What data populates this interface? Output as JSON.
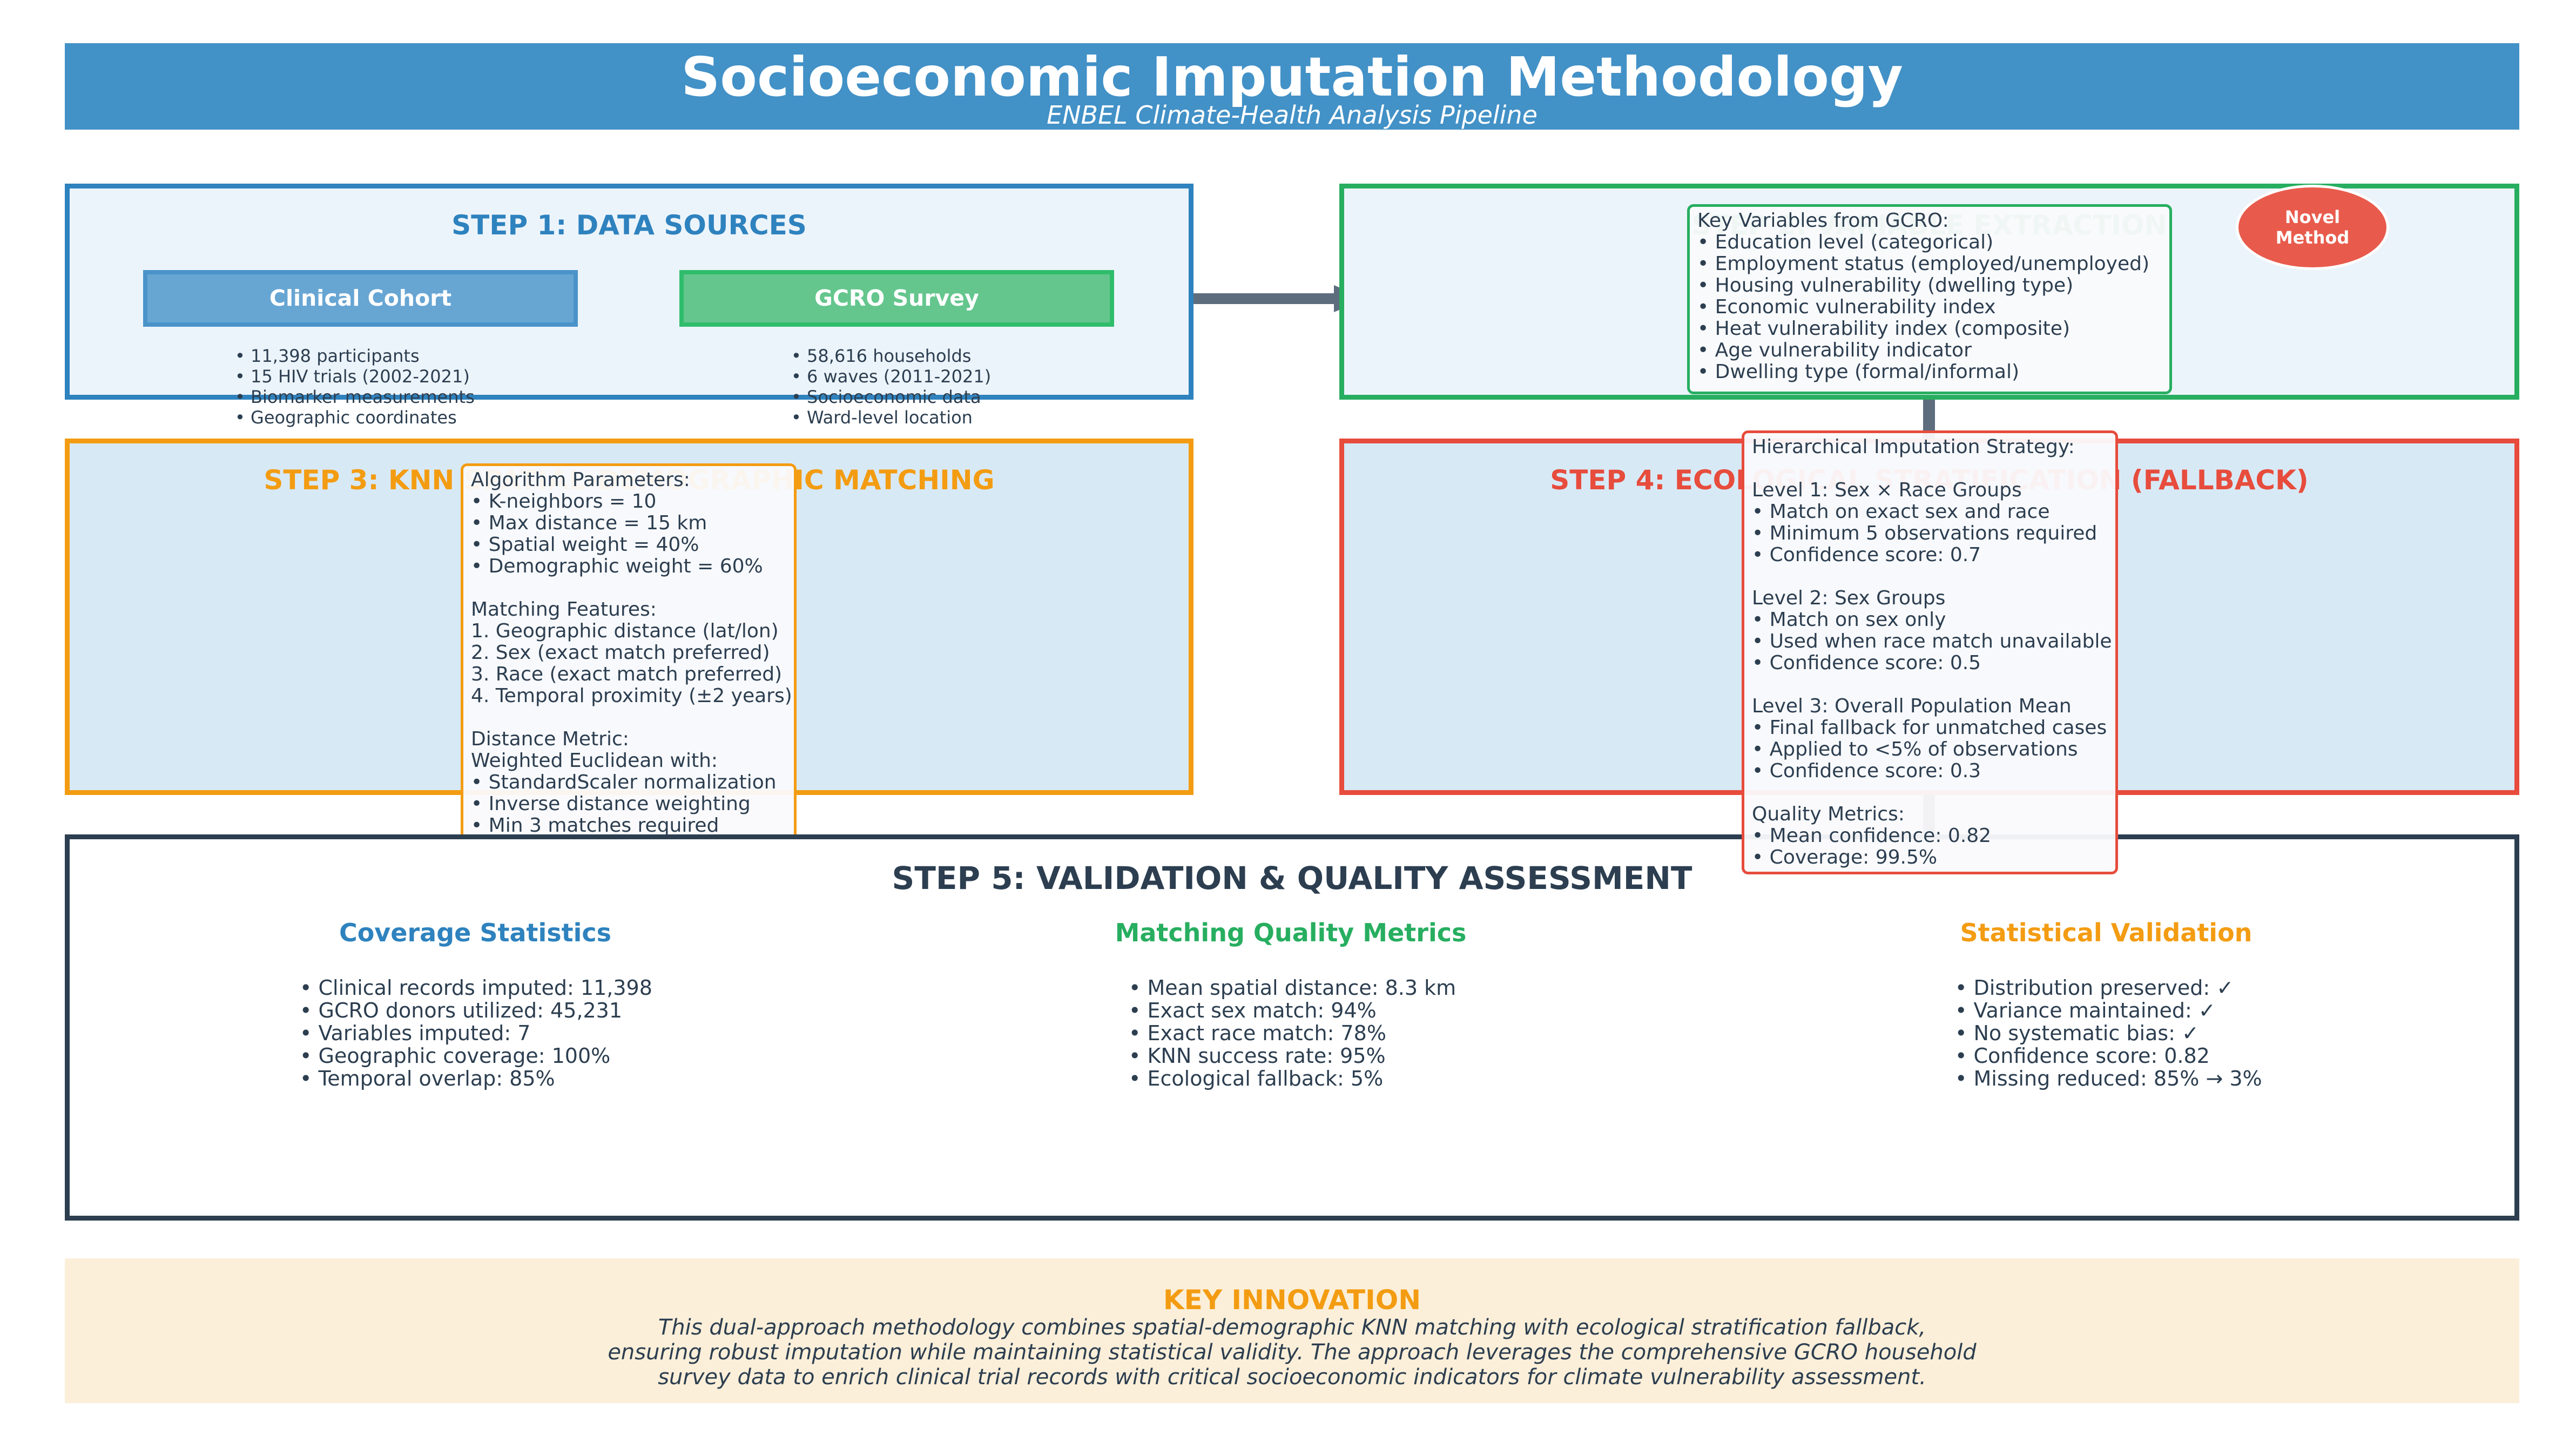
{
  "header": {
    "title": "Socioeconomic Imputation Methodology",
    "subtitle": "ENBEL Climate-Health Analysis Pipeline"
  },
  "colors": {
    "banner": "#4291c7",
    "step1": "#2e82be",
    "step2": "#27ae60",
    "step3": "#f39c12",
    "step4": "#e74c3c",
    "step5": "#2c3e50",
    "badge": "#e85b4c",
    "innovation_bg": "#fcefd9"
  },
  "step1": {
    "title": "STEP 1: DATA SOURCES",
    "clinical_label": "Clinical Cohort",
    "clinical_bullets": "• 11,398 participants\n• 15 HIV trials (2002-2021)\n• Biomarker measurements\n• Geographic coordinates",
    "gcro_label": "GCRO Survey",
    "gcro_bullets": "• 58,616 households\n• 6 waves (2011-2021)\n• Socioeconomic data\n• Ward-level location"
  },
  "step2": {
    "title": "STEP 2: VARIABLE EXTRACTION",
    "badge": "Novel\nMethod",
    "note": "Key Variables from GCRO:\n• Education level (categorical)\n• Employment status (employed/unemployed)\n• Housing vulnerability (dwelling type)\n• Economic vulnerability index\n• Heat vulnerability index (composite)\n• Age vulnerability indicator\n• Dwelling type (formal/informal)"
  },
  "step3": {
    "title": "STEP 3: KNN SPATIAL-DEMOGRAPHIC MATCHING",
    "note": "Algorithm Parameters:\n• K-neighbors = 10\n• Max distance = 15 km\n• Spatial weight = 40%\n• Demographic weight = 60%\n\nMatching Features:\n1. Geographic distance (lat/lon)\n2. Sex (exact match preferred)\n3. Race (exact match preferred)\n4. Temporal proximity (±2 years)\n\nDistance Metric:\nWeighted Euclidean with:\n• StandardScaler normalization\n• Inverse distance weighting\n• Min 3 matches required"
  },
  "step4": {
    "title": "STEP 4: ECOLOGICAL STRATIFICATION (FALLBACK)",
    "note": "Hierarchical Imputation Strategy:\n\nLevel 1: Sex × Race Groups\n• Match on exact sex and race\n• Minimum 5 observations required\n• Confidence score: 0.7\n\nLevel 2: Sex Groups\n• Match on sex only\n• Used when race match unavailable\n• Confidence score: 0.5\n\nLevel 3: Overall Population Mean\n• Final fallback for unmatched cases\n• Applied to <5% of observations\n• Confidence score: 0.3\n\nQuality Metrics:\n• Mean confidence: 0.82\n• Coverage: 99.5%"
  },
  "step5": {
    "title": "STEP 5: VALIDATION & QUALITY ASSESSMENT",
    "coverage_title": "Coverage Statistics",
    "coverage_items": "• Clinical records imputed: 11,398\n• GCRO donors utilized: 45,231\n• Variables imputed: 7\n• Geographic coverage: 100%\n• Temporal overlap: 85%",
    "matching_title": "Matching Quality Metrics",
    "matching_items": "• Mean spatial distance: 8.3 km\n• Exact sex match: 94%\n• Exact race match: 78%\n• KNN success rate: 95%\n• Ecological fallback: 5%",
    "validation_title": "Statistical Validation",
    "validation_items": "• Distribution preserved: ✓\n• Variance maintained: ✓\n• No systematic bias: ✓\n• Confidence score: 0.82\n• Missing reduced: 85% → 3%"
  },
  "innovation": {
    "title": "KEY INNOVATION",
    "line1": "This dual-approach methodology combines spatial-demographic KNN matching with ecological stratification fallback,",
    "line2": "ensuring robust imputation while maintaining statistical validity. The approach leverages the comprehensive GCRO household",
    "line3": "survey data to enrich clinical trial records with critical socioeconomic indicators for climate vulnerability assessment."
  }
}
